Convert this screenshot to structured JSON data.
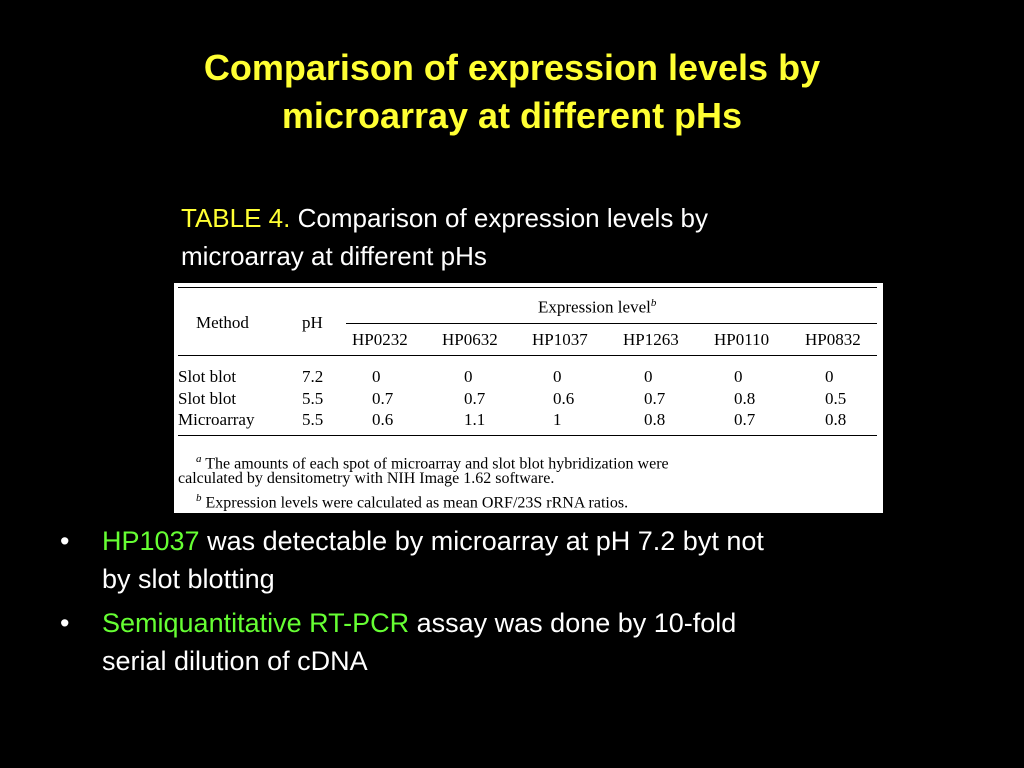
{
  "title": {
    "line1": "Comparison of expression levels by",
    "line2": "microarray at different pHs"
  },
  "caption": {
    "label": "TABLE 4.",
    "text_line1": "Comparison of expression levels by",
    "text_line2": "microarray at different pHs"
  },
  "table": {
    "col_method": "Method",
    "col_ph": "pH",
    "group_header": "Expression level",
    "group_header_mark": "b",
    "genes": [
      "HP0232",
      "HP0632",
      "HP1037",
      "HP1263",
      "HP0110",
      "HP0832"
    ],
    "rows": [
      {
        "method": "Slot blot",
        "ph": "7.2",
        "values": [
          "0",
          "0",
          "0",
          "0",
          "0",
          "0"
        ]
      },
      {
        "method": "Slot blot",
        "ph": "5.5",
        "values": [
          "0.7",
          "0.7",
          "0.6",
          "0.7",
          "0.8",
          "0.5"
        ]
      },
      {
        "method": "Microarray",
        "ph": "5.5",
        "values": [
          "0.6",
          "1.1",
          "1",
          "0.8",
          "0.7",
          "0.8"
        ]
      }
    ],
    "footnote_a_mark": "a",
    "footnote_a_line1": "The amounts of each spot of microarray and slot blot hybridization were",
    "footnote_a_line2": "calculated by densitometry with NIH Image 1.62 software.",
    "footnote_b_mark": "b",
    "footnote_b": "Expression levels were calculated as mean ORF/23S rRNA ratios."
  },
  "bullets": [
    {
      "highlight": "HP1037",
      "rest_line1": " was detectable by microarray at pH 7.2 byt not",
      "rest_line2": "by slot blotting"
    },
    {
      "highlight": "Semiquantitative RT-PCR",
      "rest_line1": " assay was done by 10-fold",
      "rest_line2": "serial dilution of cDNA"
    }
  ],
  "bullet_symbol": "•",
  "colors": {
    "background": "#000000",
    "title": "#ffff33",
    "highlight": "#66ff33",
    "text": "#ffffff"
  }
}
